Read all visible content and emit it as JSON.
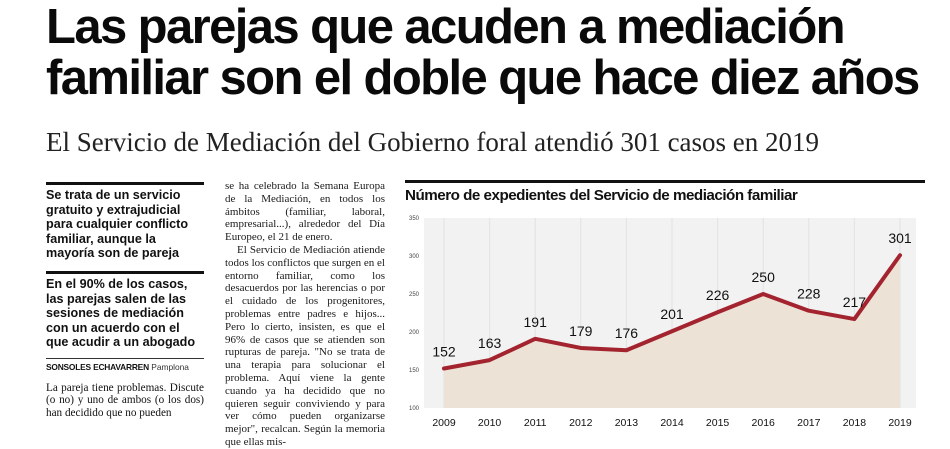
{
  "headline": {
    "line1": "Las parejas que acuden a mediación",
    "line2": "familiar son el doble que hace diez años"
  },
  "subheadline": "El Servicio de Mediación del Gobierno foral atendió 301 casos en 2019",
  "callouts": [
    "Se trata de un servicio gratuito y extrajudicial para cualquier conflicto familiar, aunque la mayoría son de pareja",
    "En el 90% de los casos, las parejas salen de las sesiones de mediación con un acuerdo con el que acudir a un abogado"
  ],
  "byline": {
    "name": "SONSOLES ECHAVARREN",
    "place": "Pamplona"
  },
  "left_body": "La pareja tiene problemas. Discute (o no) y uno de ambos (o los dos) han decidido que no pueden",
  "middle_paragraphs": [
    "se ha celebrado la Semana Europa de la Mediación, en todos los ámbitos (familiar, laboral, empresarial...), alrededor del Día Europeo, el 21 de enero.",
    "El Servicio de Mediación atiende todos los conflictos que surgen en el entorno familiar, como los desacuerdos por las herencias o por el cuidado de los progenitores, problemas entre padres e hijos... Pero lo cierto, insisten, es que el 96% de casos que se atienden son rupturas de pareja. \"No se trata de una terapia para solucionar el problema. Aquí viene la gente cuando ya ha decidido que no quieren seguir conviviendo y para ver cómo pueden organizarse mejor\", recalcan. Según la memoria que ellas mis-"
  ],
  "chart_title": "Número de expedientes del Servicio de mediación familiar",
  "chart_data": {
    "type": "area",
    "title": "Número de expedientes del Servicio de mediación familiar",
    "x": [
      "2009",
      "2010",
      "2011",
      "2012",
      "2013",
      "2014",
      "2015",
      "2016",
      "2017",
      "2018",
      "2019"
    ],
    "values": [
      152,
      163,
      191,
      179,
      176,
      201,
      226,
      250,
      228,
      217,
      301
    ],
    "y_ticks": [
      100,
      150,
      200,
      250,
      300,
      350
    ],
    "ylim": [
      100,
      350
    ],
    "grid": true,
    "line_color": "#a3232f",
    "fill_color": "#ece3d6",
    "grid_color": "#e2e2e2"
  }
}
